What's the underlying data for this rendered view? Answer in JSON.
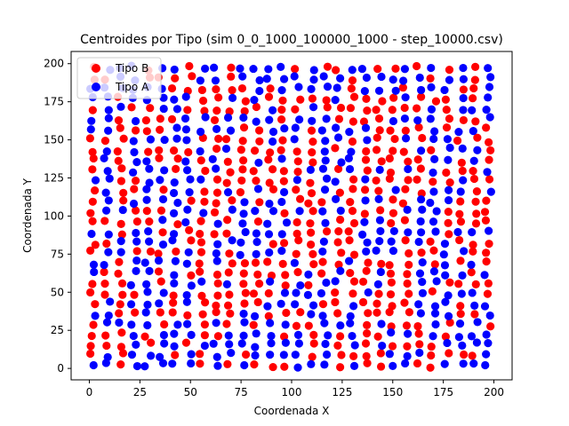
{
  "chart_data": {
    "type": "scatter",
    "title": "Centroides por Tipo (sim 0_0_1000_100000_1000 - step_10000.csv)",
    "xlabel": "Coordenada X",
    "ylabel": "Coordenada Y",
    "xlim": [
      -9,
      209
    ],
    "ylim": [
      -7.5,
      208
    ],
    "xticks": [
      0,
      25,
      50,
      75,
      100,
      125,
      150,
      175,
      200
    ],
    "yticks": [
      0,
      25,
      50,
      75,
      100,
      125,
      150,
      175,
      200
    ],
    "grid": false,
    "legend_position": "top-left",
    "marker": "circle",
    "series": [
      {
        "name": "Tipo B",
        "color": "#ff0000",
        "points": []
      },
      {
        "name": "Tipo A",
        "color": "#0000ff",
        "points": []
      }
    ],
    "generation": {
      "grid_x_min": 2,
      "grid_x_max": 197,
      "grid_y_min": 2,
      "grid_y_max": 197,
      "cols": 30,
      "rows": 30,
      "jitter": 1.6,
      "seed": 20240607,
      "note_fill": "Dense ~900-point lattice; center (x 55-155, y 25-175) mostly red with blue clusters, blue interlaced near left/bottom edges."
    }
  }
}
